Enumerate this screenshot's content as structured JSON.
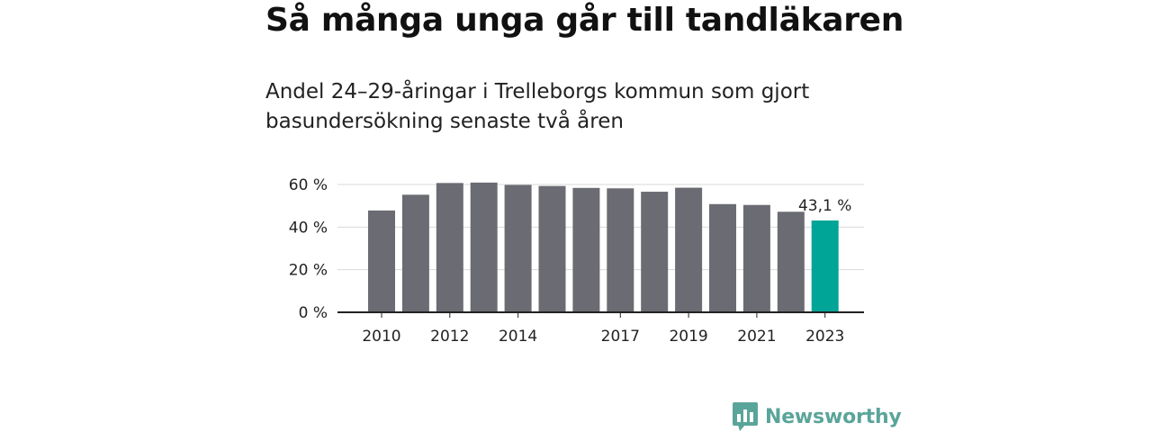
{
  "title": "Så många unga går till tandläkaren",
  "subtitle": "Andel 24–29-åringar i Trelleborgs kommun som gjort basundersökning senaste två åren",
  "brand": {
    "name": "Newsworthy",
    "color": "#5aa59a",
    "icon": "bar-chart-speech-bubble-icon"
  },
  "chart_data": {
    "type": "bar",
    "categories": [
      2010,
      2011,
      2012,
      2013,
      2014,
      2015,
      2016,
      2017,
      2018,
      2019,
      2020,
      2021,
      2022,
      2023
    ],
    "tick_labels": [
      "2010",
      "",
      "2012",
      "",
      "2014",
      "",
      "",
      "2017",
      "",
      "2019",
      "",
      "2021",
      "",
      "2023"
    ],
    "values": [
      47.8,
      55.2,
      60.7,
      60.9,
      59.8,
      59.3,
      58.4,
      58.2,
      56.6,
      58.5,
      50.8,
      50.4,
      47.2,
      43.1
    ],
    "ylim": [
      0,
      60
    ],
    "yticks": [
      0,
      20,
      40,
      60
    ],
    "ytick_labels": [
      "0 %",
      "20 %",
      "40 %",
      "60 %"
    ],
    "grid": true,
    "bar_color": "#6b6b73",
    "highlight_color": "#00a597",
    "highlight_index": 13,
    "annotation": {
      "index": 13,
      "text": "43,1 %"
    }
  }
}
